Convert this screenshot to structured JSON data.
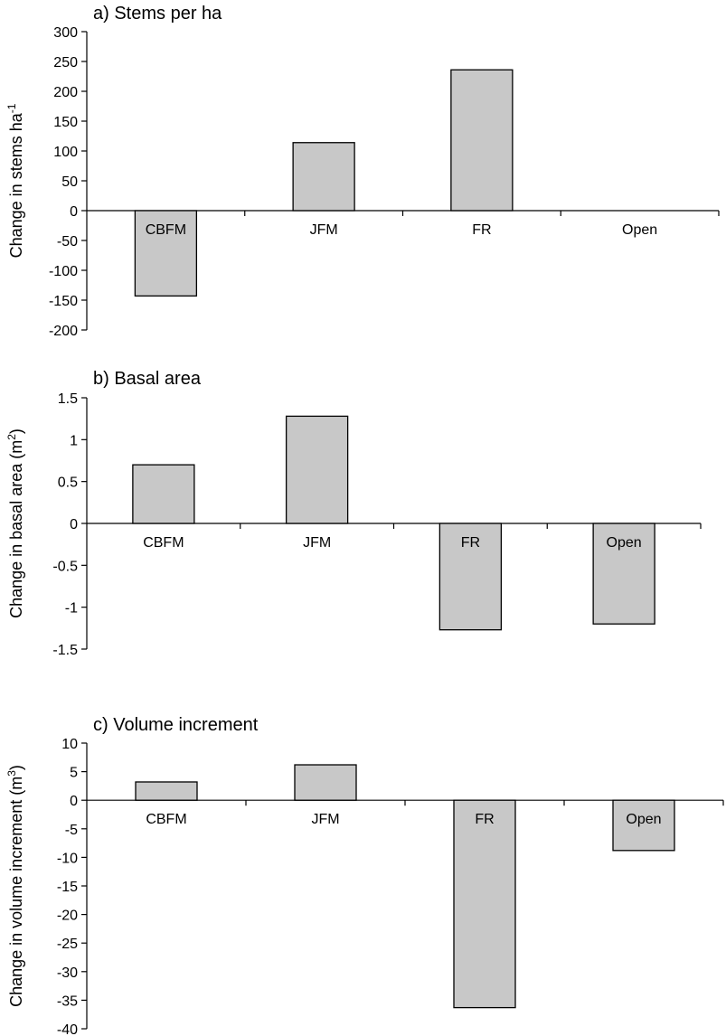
{
  "colors": {
    "bar_fill": "#c8c8c8",
    "bar_stroke": "#000000",
    "axis": "#000000"
  },
  "chart_data": [
    {
      "type": "bar",
      "title": "a) Stems per ha",
      "ylabel_main": "Change in stems ha",
      "ylabel_sup": "-1",
      "ylabel_tail": "",
      "categories": [
        "CBFM",
        "JFM",
        "FR",
        "Open"
      ],
      "values": [
        -143,
        114,
        236,
        0
      ],
      "ylim": [
        -200,
        300
      ],
      "yticks": [
        300,
        250,
        200,
        150,
        100,
        50,
        0,
        -50,
        -100,
        -150,
        -200
      ],
      "ytick_labels": [
        "300",
        "250",
        "200",
        "150",
        "100",
        "50",
        "0",
        "-50",
        "-100",
        "-150",
        "-200"
      ],
      "grid": false,
      "legend": "none"
    },
    {
      "type": "bar",
      "title": "b) Basal area",
      "ylabel_main": "Change in basal area (m",
      "ylabel_sup": "2",
      "ylabel_tail": ")",
      "categories": [
        "CBFM",
        "JFM",
        "FR",
        "Open"
      ],
      "values": [
        0.7,
        1.28,
        -1.27,
        -1.2
      ],
      "ylim": [
        -1.5,
        1.5
      ],
      "yticks": [
        1.5,
        1,
        0.5,
        0,
        -0.5,
        -1,
        -1.5
      ],
      "ytick_labels": [
        "1.5",
        "1",
        "0.5",
        "0",
        "-0.5",
        "-1",
        "-1.5"
      ],
      "grid": false,
      "legend": "none"
    },
    {
      "type": "bar",
      "title": "c) Volume increment",
      "ylabel_main": "Change in volume increment (m",
      "ylabel_sup": "3",
      "ylabel_tail": ")",
      "categories": [
        "CBFM",
        "JFM",
        "FR",
        "Open"
      ],
      "values": [
        3.2,
        6.2,
        -36.3,
        -8.8
      ],
      "ylim": [
        -40,
        10
      ],
      "yticks": [
        10,
        5,
        0,
        -5,
        -10,
        -15,
        -20,
        -25,
        -30,
        -35,
        -40
      ],
      "ytick_labels": [
        "10",
        "5",
        "0",
        "-5",
        "-10",
        "-15",
        "-20",
        "-25",
        "-30",
        "-35",
        "-40"
      ],
      "grid": false,
      "legend": "none"
    }
  ]
}
